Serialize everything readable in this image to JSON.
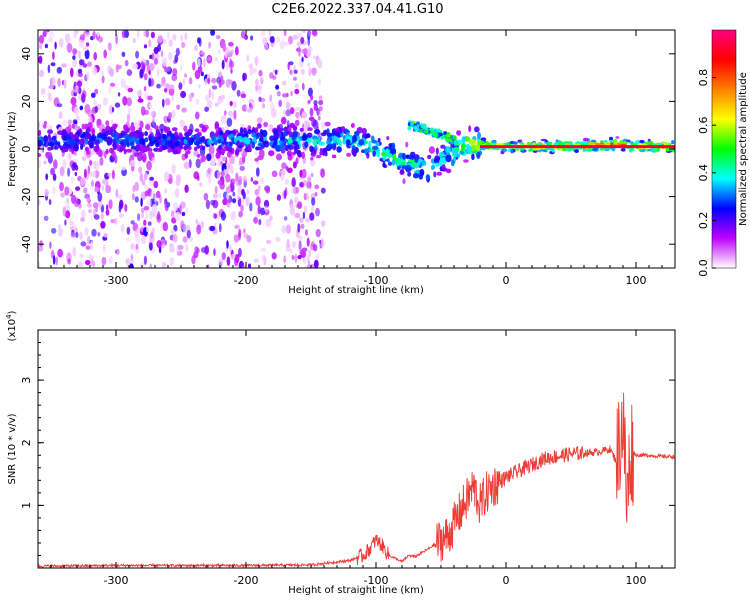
{
  "title": "C2E6.2022.337.04.41.G10",
  "chart_data": [
    {
      "type": "heatmap",
      "xlabel": "Height of straight line (km)",
      "ylabel": "Frequency (Hz)",
      "xlim": [
        -360,
        130
      ],
      "ylim": [
        -50,
        50
      ],
      "xticks": [
        -300,
        -200,
        -100,
        0,
        100
      ],
      "yticks": [
        -40,
        -20,
        0,
        20,
        40
      ],
      "colorbar": {
        "label": "Normalized spectral amplitude",
        "range": [
          0.0,
          1.0
        ],
        "ticks": [
          0.0,
          0.2,
          0.4,
          0.6,
          0.8
        ],
        "tick_labels": [
          "0.0",
          "0.2",
          "0.4",
          "0.6",
          "0.8"
        ],
        "colors": [
          "#ffffff",
          "#c000ff",
          "#0000ff",
          "#00ffff",
          "#00ff00",
          "#ffff00",
          "#ff8000",
          "#ff0000",
          "#ff0080"
        ]
      },
      "ridge": {
        "x": [
          -360,
          -300,
          -250,
          -200,
          -150,
          -120,
          -100,
          -80,
          -60,
          -45,
          -30,
          -20,
          0,
          50,
          85,
          100,
          130
        ],
        "y": [
          3,
          4,
          3,
          4,
          3,
          4,
          0,
          -5,
          -8,
          -3,
          2,
          2,
          1,
          1,
          2,
          1,
          1
        ],
        "amplitude": [
          0.35,
          0.35,
          0.35,
          0.4,
          0.45,
          0.5,
          0.55,
          0.55,
          0.5,
          0.5,
          0.7,
          0.75,
          0.85,
          0.95,
          0.9,
          0.95,
          0.95
        ]
      },
      "branch": {
        "x": [
          -75,
          -65,
          -55,
          -45,
          -38
        ],
        "y": [
          10,
          9,
          7,
          5,
          3
        ]
      },
      "noise_region": [
        -360,
        -140
      ]
    },
    {
      "type": "line",
      "xlabel": "Height of straight line (km)",
      "ylabel": "SNR (10 * v/v)",
      "y_multiplier": "(x10",
      "y_multiplier_exp": "4",
      "y_multiplier_close": ")",
      "xlim": [
        -360,
        130
      ],
      "ylim": [
        0,
        3.8
      ],
      "xticks": [
        -300,
        -200,
        -100,
        0,
        100
      ],
      "yticks": [
        1,
        2,
        3
      ],
      "color": "#ef3b35",
      "x": [
        -360,
        -300,
        -200,
        -150,
        -120,
        -110,
        -105,
        -100,
        -95,
        -90,
        -85,
        -80,
        -75,
        -70,
        -60,
        -50,
        -45,
        -40,
        -35,
        -30,
        -25,
        -20,
        -15,
        -10,
        0,
        10,
        20,
        30,
        50,
        70,
        80,
        85,
        90,
        93,
        96,
        100,
        110,
        120,
        130
      ],
      "y": [
        0.03,
        0.04,
        0.04,
        0.05,
        0.12,
        0.2,
        0.3,
        0.45,
        0.35,
        0.2,
        0.15,
        0.1,
        0.2,
        0.18,
        0.3,
        0.45,
        0.5,
        0.7,
        0.9,
        1.1,
        1.3,
        1.0,
        1.2,
        1.3,
        1.45,
        1.55,
        1.65,
        1.75,
        1.82,
        1.85,
        1.9,
        1.7,
        2.4,
        1.0,
        1.9,
        1.8,
        1.8,
        1.78,
        1.78
      ]
    }
  ]
}
